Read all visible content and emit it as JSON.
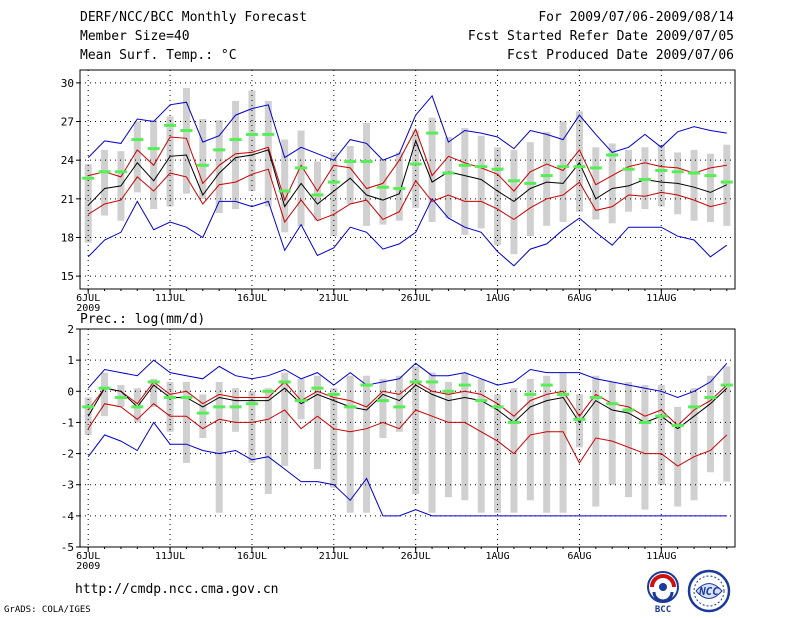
{
  "header": {
    "title": "DERF/NCC/BCC Monthly Forecast",
    "member_size": "Member Size=40",
    "variable": "Mean Surf. Temp.: °C",
    "period": "For 2009/07/06-2009/08/14",
    "started": "Fcst Started Refer Date 2009/07/05",
    "produced": "Fcst Produced Date 2009/07/06"
  },
  "footer": {
    "url": "http://cmdp.ncc.cma.gov.cn",
    "credit": "GrADS: COLA/IGES",
    "logo_left": "BCC",
    "logo_right": "NCC"
  },
  "colors": {
    "box": "#d0d0d0",
    "mean": "#000000",
    "spread": "#cc0000",
    "extreme": "#0000cc",
    "observed": "#55ee55"
  },
  "chart_data": [
    {
      "type": "line",
      "title": "Mean Surf. Temp.: °C",
      "ylim": [
        14,
        31
      ],
      "yticks": [
        15,
        18,
        21,
        24,
        27,
        30
      ],
      "x": [
        0,
        1,
        2,
        3,
        4,
        5,
        6,
        7,
        8,
        9,
        10,
        11,
        12,
        13,
        14,
        15,
        16,
        17,
        18,
        19,
        20,
        21,
        22,
        23,
        24,
        25,
        26,
        27,
        28,
        29,
        30,
        31,
        32,
        33,
        34,
        35,
        36,
        37,
        38,
        39
      ],
      "xtick_index": [
        0,
        5,
        10,
        15,
        20,
        25,
        30,
        35
      ],
      "xtick_labels": [
        "6JUL",
        "11JUL",
        "16JUL",
        "21JUL",
        "26JUL",
        "1AUG",
        "6AUG",
        "11AUG"
      ],
      "xtick_sublabel": "2009",
      "series": [
        {
          "name": "max",
          "values": [
            16.5,
            17.8,
            18.4,
            20.8,
            18.6,
            19.2,
            18.8,
            18.0,
            20.8,
            20.8,
            20.4,
            20.8,
            17.0,
            19.0,
            16.6,
            17.2,
            18.8,
            18.4,
            17.1,
            17.5,
            18.4,
            21.0,
            19.5,
            18.8,
            18.4,
            16.9,
            15.8,
            17.1,
            17.5,
            18.6,
            19.5,
            18.4,
            17.4,
            18.8,
            18.8,
            18.8,
            18.1,
            17.8,
            16.5,
            17.4
          ]
        },
        {
          "name": "upper",
          "values": [
            22.8,
            23.1,
            22.7,
            24.8,
            23.6,
            25.8,
            25.7,
            22.2,
            23.6,
            24.5,
            24.6,
            25.0,
            20.9,
            23.6,
            21.6,
            23.6,
            23.4,
            21.8,
            22.2,
            24.0,
            26.4,
            22.8,
            24.3,
            23.8,
            23.4,
            22.9,
            21.6,
            23.1,
            23.7,
            23.2,
            24.8,
            22.1,
            22.8,
            23.5,
            23.8,
            23.5,
            23.4,
            23.0,
            23.4,
            23.6
          ]
        },
        {
          "name": "mean",
          "values": [
            20.5,
            21.8,
            22.0,
            23.8,
            22.4,
            24.3,
            24.4,
            21.3,
            23.0,
            24.2,
            24.4,
            24.8,
            20.4,
            22.2,
            20.6,
            21.6,
            22.6,
            21.3,
            20.9,
            21.4,
            25.5,
            22.3,
            23.1,
            22.8,
            22.5,
            21.6,
            20.8,
            21.8,
            22.3,
            22.2,
            23.8,
            21.0,
            21.8,
            22.0,
            22.5,
            22.3,
            22.2,
            21.9,
            21.5,
            22.1
          ]
        },
        {
          "name": "lower",
          "values": [
            19.8,
            20.6,
            20.9,
            22.7,
            21.6,
            23.0,
            22.7,
            20.6,
            22.1,
            22.3,
            22.9,
            23.3,
            19.2,
            20.9,
            19.3,
            19.8,
            20.6,
            20.9,
            19.4,
            20.0,
            22.4,
            20.8,
            21.3,
            20.8,
            20.8,
            20.2,
            19.4,
            20.3,
            21.0,
            21.3,
            22.3,
            20.1,
            20.4,
            21.3,
            21.2,
            21.5,
            21.3,
            20.9,
            20.4,
            20.7
          ]
        },
        {
          "name": "min",
          "values": [
            24.2,
            25.5,
            25.3,
            27.2,
            27.0,
            28.3,
            28.5,
            25.4,
            25.9,
            27.5,
            28.0,
            28.3,
            24.2,
            25.0,
            24.5,
            24.0,
            25.6,
            25.3,
            24.0,
            24.5,
            27.5,
            29.0,
            25.4,
            26.3,
            26.1,
            25.8,
            24.9,
            26.3,
            26.0,
            25.6,
            27.5,
            26.0,
            24.6,
            25.0,
            26.0,
            25.0,
            26.2,
            26.6,
            26.3,
            26.1
          ]
        },
        {
          "name": "observed",
          "values": [
            22.6,
            23.1,
            23.1,
            25.6,
            24.9,
            26.7,
            26.3,
            23.6,
            24.8,
            25.6,
            26.0,
            26.0,
            21.6,
            23.4,
            21.3,
            22.3,
            23.9,
            23.9,
            21.9,
            21.8,
            23.7,
            26.1,
            23.0,
            23.6,
            23.5,
            23.3,
            22.4,
            22.2,
            22.8,
            23.5,
            23.5,
            23.4,
            24.4,
            23.3,
            22.5,
            23.2,
            23.1,
            23.0,
            22.8,
            22.3
          ]
        }
      ],
      "box_hi": [
        23.7,
        24.8,
        24.7,
        27.0,
        27.1,
        27.4,
        29.6,
        27.2,
        27.1,
        28.6,
        29.4,
        28.6,
        25.6,
        26.3,
        23.9,
        24.6,
        25.1,
        26.9,
        24.1,
        24.6,
        26.3,
        27.3,
        25.8,
        26.5,
        25.9,
        25.0,
        24.8,
        25.4,
        26.2,
        27.0,
        27.8,
        25.0,
        25.3,
        24.8,
        25.0,
        25.2,
        24.6,
        24.8,
        24.5,
        25.2
      ],
      "box_lo": [
        17.6,
        19.7,
        19.3,
        21.5,
        20.2,
        20.4,
        21.4,
        21.0,
        19.9,
        20.2,
        21.6,
        20.4,
        18.4,
        18.9,
        19.3,
        18.1,
        20.6,
        18.9,
        19.0,
        19.3,
        20.3,
        19.2,
        19.5,
        18.2,
        18.7,
        17.4,
        16.7,
        18.1,
        18.9,
        19.2,
        20.0,
        19.4,
        19.1,
        20.0,
        20.2,
        20.4,
        19.8,
        19.3,
        19.2,
        18.9
      ]
    },
    {
      "type": "line",
      "title": "Prec.: log(mm/d)",
      "ylim": [
        -5,
        2
      ],
      "yticks": [
        -5,
        -4,
        -3,
        -2,
        -1,
        0,
        1,
        2
      ],
      "x": [
        0,
        1,
        2,
        3,
        4,
        5,
        6,
        7,
        8,
        9,
        10,
        11,
        12,
        13,
        14,
        15,
        16,
        17,
        18,
        19,
        20,
        21,
        22,
        23,
        24,
        25,
        26,
        27,
        28,
        29,
        30,
        31,
        32,
        33,
        34,
        35,
        36,
        37,
        38,
        39
      ],
      "xtick_index": [
        0,
        5,
        10,
        15,
        20,
        25,
        30,
        35
      ],
      "xtick_labels": [
        "6JUL",
        "11JUL",
        "16JUL",
        "21JUL",
        "26JUL",
        "1AUG",
        "6AUG",
        "11AUG"
      ],
      "xtick_sublabel": "2009",
      "series": [
        {
          "name": "max",
          "values": [
            0.1,
            0.7,
            0.6,
            0.5,
            1.0,
            0.6,
            0.5,
            0.4,
            0.8,
            0.5,
            0.4,
            0.5,
            0.7,
            0.4,
            0.6,
            0.2,
            0.6,
            0.2,
            0.3,
            0.4,
            0.9,
            0.5,
            0.5,
            0.6,
            0.4,
            0.2,
            0.3,
            0.7,
            0.6,
            0.6,
            0.6,
            0.4,
            0.3,
            0.2,
            0.1,
            0.0,
            -0.2,
            0.0,
            0.3,
            0.9
          ]
        },
        {
          "name": "upper",
          "values": [
            -0.6,
            0.1,
            0.0,
            -0.4,
            0.3,
            -0.1,
            0.0,
            -0.4,
            -0.1,
            -0.2,
            -0.2,
            -0.2,
            0.3,
            -0.3,
            0.0,
            -0.2,
            -0.3,
            -0.5,
            0.0,
            -0.1,
            0.3,
            0.0,
            -0.1,
            0.0,
            -0.1,
            -0.4,
            -0.8,
            -0.3,
            -0.1,
            0.0,
            -0.8,
            -0.1,
            -0.4,
            -0.5,
            -0.8,
            -0.6,
            -1.1,
            -0.6,
            -0.3,
            0.2
          ]
        },
        {
          "name": "mean",
          "values": [
            -0.8,
            0.1,
            0.0,
            -0.5,
            0.2,
            -0.2,
            -0.2,
            -0.5,
            -0.2,
            -0.3,
            -0.3,
            -0.3,
            0.1,
            -0.4,
            -0.1,
            -0.3,
            -0.5,
            -0.6,
            -0.1,
            -0.3,
            0.2,
            -0.1,
            -0.3,
            -0.2,
            -0.3,
            -0.6,
            -1.0,
            -0.5,
            -0.3,
            -0.2,
            -1.0,
            -0.3,
            -0.6,
            -0.7,
            -1.0,
            -0.8,
            -1.2,
            -0.8,
            -0.4,
            0.1
          ]
        },
        {
          "name": "lower",
          "values": [
            -1.2,
            -0.4,
            -0.5,
            -0.9,
            -0.4,
            -0.8,
            -0.8,
            -1.2,
            -0.9,
            -1.0,
            -1.0,
            -0.9,
            -0.6,
            -1.2,
            -0.8,
            -1.2,
            -1.3,
            -1.2,
            -1.0,
            -1.2,
            -0.6,
            -0.8,
            -1.0,
            -1.0,
            -1.3,
            -1.6,
            -2.0,
            -1.4,
            -1.3,
            -1.3,
            -2.3,
            -1.5,
            -1.6,
            -1.8,
            -2.0,
            -2.0,
            -2.4,
            -2.1,
            -1.9,
            -1.4
          ]
        },
        {
          "name": "min",
          "values": [
            -2.1,
            -1.4,
            -1.6,
            -1.9,
            -1.0,
            -1.7,
            -1.7,
            -1.9,
            -2.0,
            -1.9,
            -2.2,
            -2.1,
            -2.5,
            -2.9,
            -2.9,
            -3.0,
            -3.5,
            -2.8,
            -4.0,
            -4.0,
            -3.8,
            -4.0,
            -4.0,
            -4.0,
            -4.0,
            -4.0,
            -4.0,
            -4.0,
            -4.0,
            -4.0,
            -4.0,
            -4.0,
            -4.0,
            -4.0,
            -4.0,
            -4.0,
            -4.0,
            -4.0,
            -4.0,
            -4.0
          ]
        },
        {
          "name": "observed",
          "values": [
            -0.5,
            0.1,
            -0.2,
            -0.5,
            0.3,
            -0.2,
            -0.2,
            -0.7,
            -0.5,
            -0.5,
            -0.4,
            0.0,
            0.3,
            -0.3,
            0.1,
            -0.1,
            -0.5,
            0.2,
            -0.3,
            -0.5,
            0.3,
            0.3,
            0.0,
            0.2,
            -0.3,
            -0.5,
            -1.0,
            -0.1,
            0.2,
            -0.1,
            -0.9,
            -0.2,
            -0.4,
            -0.6,
            -1.0,
            -0.8,
            -1.1,
            -0.5,
            -0.2,
            0.2
          ]
        }
      ],
      "box_hi": [
        -0.2,
        0.6,
        0.2,
        0.1,
        0.4,
        0.3,
        0.3,
        -0.1,
        0.3,
        0.1,
        0.0,
        0.1,
        0.6,
        0.4,
        0.5,
        0.1,
        0.5,
        0.5,
        0.4,
        0.5,
        0.8,
        0.6,
        0.3,
        0.6,
        0.4,
        -0.1,
        0.1,
        0.4,
        0.5,
        0.6,
        -0.1,
        0.5,
        0.3,
        0.3,
        0.2,
        0.2,
        -0.5,
        0.1,
        0.5,
        0.8
      ],
      "box_lo": [
        -1.4,
        -0.8,
        -0.5,
        -1.0,
        -0.5,
        -1.3,
        -2.3,
        -1.5,
        -3.9,
        -1.3,
        -2.3,
        -3.3,
        -2.4,
        -0.9,
        -2.5,
        -3.1,
        -3.9,
        -3.9,
        -1.5,
        -1.3,
        -3.3,
        -3.9,
        -3.4,
        -3.5,
        -3.9,
        -3.9,
        -3.9,
        -3.5,
        -3.9,
        -3.9,
        -1.8,
        -3.7,
        -3.0,
        -3.4,
        -3.8,
        -3.0,
        -3.7,
        -3.5,
        -2.6,
        -2.9
      ]
    }
  ]
}
